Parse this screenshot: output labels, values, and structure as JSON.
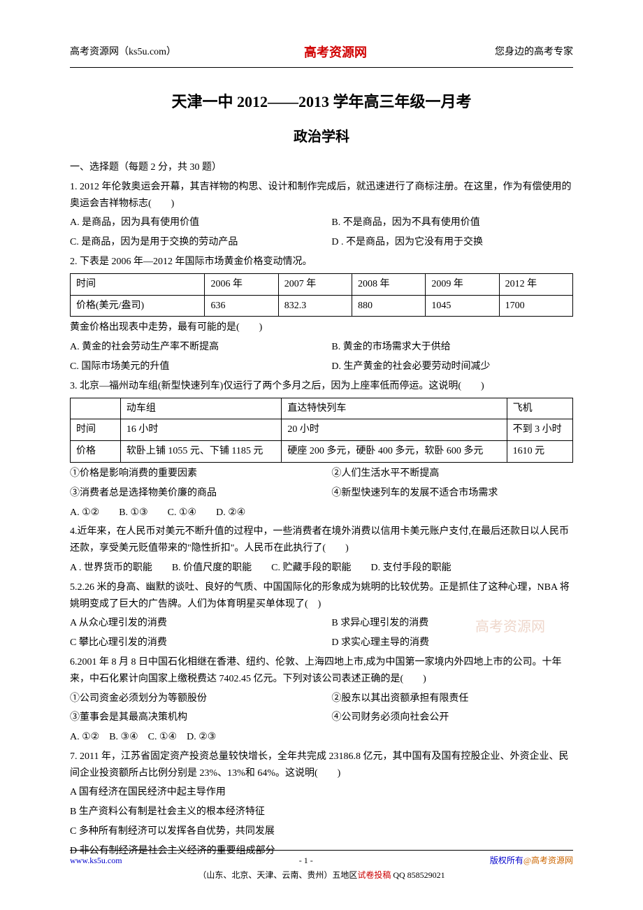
{
  "header": {
    "left": "高考资源网（ks5u.com）",
    "center": "高考资源网",
    "right": "您身边的高考专家"
  },
  "title": {
    "main": "天津一中 2012——2013 学年高三年级一月考",
    "sub": "政治学科"
  },
  "section_heading": "一、选择题（每题 2 分，共 30 题）",
  "q1": {
    "text": "1. 2012 年伦敦奥运会开幕，其吉祥物的构思、设计和制作完成后，就迅速进行了商标注册。在这里，作为有偿使用的奥运会吉祥物标志(　　)",
    "a": "A. 是商品，因为具有使用价值",
    "b": "B. 不是商品，因为不具有使用价值",
    "c": "C. 是商品，因为是用于交换的劳动产品",
    "d": "D . 不是商品，因为它没有用于交换"
  },
  "q2": {
    "text": "2. 下表是 2006 年—2012 年国际市场黄金价格变动情况。",
    "table": {
      "r1": [
        "时间",
        "2006 年",
        "2007 年",
        "2008 年",
        "2009 年",
        "2012 年"
      ],
      "r2": [
        "价格(美元/盎司)",
        "636",
        "832.3",
        "880",
        "1045",
        "1700"
      ]
    },
    "sub": "黄金价格出现表中走势，最有可能的是(　　)",
    "a": "A. 黄金的社会劳动生产率不断提高",
    "b": "B. 黄金的市场需求大于供给",
    "c": "C. 国际市场美元的升值",
    "d": "D. 生产黄金的社会必要劳动时间减少"
  },
  "q3": {
    "text": "3. 北京—福州动车组(新型快速列车)仅运行了两个多月之后，因为上座率低而停运。这说明(　　)",
    "table": {
      "h": [
        "",
        "动车组",
        "直达特快列车",
        "飞机"
      ],
      "r1": [
        "时间",
        "16 小时",
        "20 小时",
        "不到 3 小时"
      ],
      "r2": [
        "价格",
        "软卧上铺 1055 元、下铺 1185 元",
        "硬座 200 多元，硬卧 400 多元，软卧 600 多元",
        "1610 元"
      ]
    },
    "s1": "①价格是影响消费的重要因素",
    "s2": "②人们生活水平不断提高",
    "s3": "③消费者总是选择物美价廉的商品",
    "s4": "④新型快速列车的发展不适合市场需求",
    "opts": "A. ①②　　B. ①③　　C. ①④　　D. ②④"
  },
  "q4": {
    "text": "4.近年来，在人民币对美元不断升值的过程中，一些消费者在境外消费以信用卡美元账户支付,在最后还款日以人民币还款，享受美元贬值带来的\"隐性折扣\"。人民币在此执行了(　　)",
    "opts": "A . 世界货币的职能　　B. 价值尺度的职能　　C. 贮藏手段的职能　　D. 支付手段的职能"
  },
  "q5": {
    "text": "5.2.26 米的身高、幽默的谈吐、良好的气质、中国国际化的形象成为姚明的比较优势。正是抓住了这种心理，NBA 将姚明变成了巨大的广告牌。人们为体育明星买单体现了(　)",
    "a": "A 从众心理引发的消费",
    "b": "B 求异心理引发的消费",
    "c": "C 攀比心理引发的消费",
    "d": "D 求实心理主导的消费"
  },
  "q6": {
    "text": "6.2001 年 8 月 8 日中国石化相继在香港、纽约、伦敦、上海四地上市,成为中国第一家境内外四地上市的公司。十年来，中石化累计向国家上缴税费达 7402.45 亿元。下列对该公司表述正确的是(　　)",
    "s1": "①公司资金必须划分为等额股份",
    "s2": "②股东以其出资额承担有限责任",
    "s3": "③董事会是其最高决策机构",
    "s4": "④公司财务必须向社会公开",
    "opts": "A. ①②　B. ③④　C. ①④　D. ②③"
  },
  "q7": {
    "text": "7. 2011 年，江苏省固定资产投资总量较快增长，全年共完成 23186.8 亿元，其中国有及国有控股企业、外资企业、民间企业投资额所占比例分别是 23%、13%和 64%。这说明(　　)",
    "a": "A 国有经济在国民经济中起主导作用",
    "b": "B 生产资料公有制是社会主义的根本经济特征",
    "c": "C 多种所有制经济可以发挥各自优势，共同发展",
    "d": "D 非公有制经济是社会主义经济的重要组成部分"
  },
  "watermark": "高考资源网",
  "footer": {
    "url": "www.ks5u.com",
    "page_prefix": "- ",
    "page_num": "1",
    "page_suffix": " -",
    "right_prefix": "版权所有",
    "right_link": "@高考资源网",
    "line2_a": "（山东、北京、天津、云南、贵州）五地区",
    "line2_b": "试卷投稿",
    "line2_c": " QQ 858529021"
  }
}
